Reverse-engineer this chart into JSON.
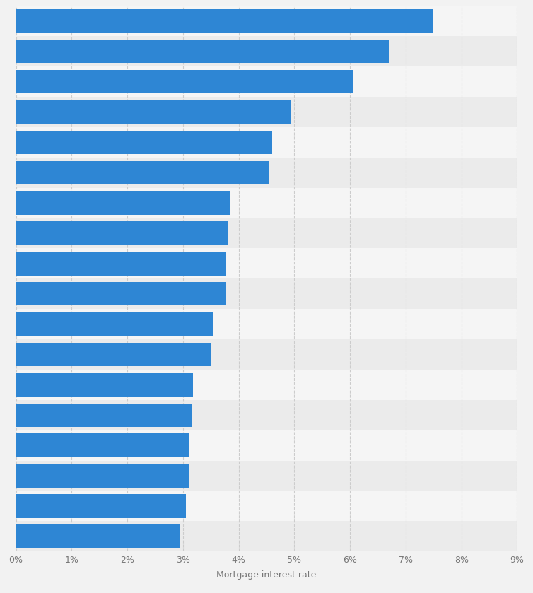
{
  "values": [
    7.5,
    6.7,
    6.05,
    4.95,
    4.6,
    4.55,
    3.85,
    3.82,
    3.78,
    3.76,
    3.55,
    3.5,
    3.18,
    3.15,
    3.12,
    3.1,
    3.05,
    2.95
  ],
  "bar_color": "#2e86d4",
  "background_color": "#f2f2f2",
  "plot_bg_color": "#f2f2f2",
  "xlabel": "Mortgage interest rate",
  "xlim": [
    0,
    9
  ],
  "xticks": [
    0,
    1,
    2,
    3,
    4,
    5,
    6,
    7,
    8,
    9
  ],
  "xtick_labels": [
    "0%",
    "1%",
    "2%",
    "3%",
    "4%",
    "5%",
    "6%",
    "7%",
    "8%",
    "9%"
  ],
  "grid_color": "#cccccc",
  "bar_height": 0.78,
  "xlabel_fontsize": 9,
  "xtick_fontsize": 9,
  "row_bg_even": "#ebebeb",
  "row_bg_odd": "#f5f5f5"
}
